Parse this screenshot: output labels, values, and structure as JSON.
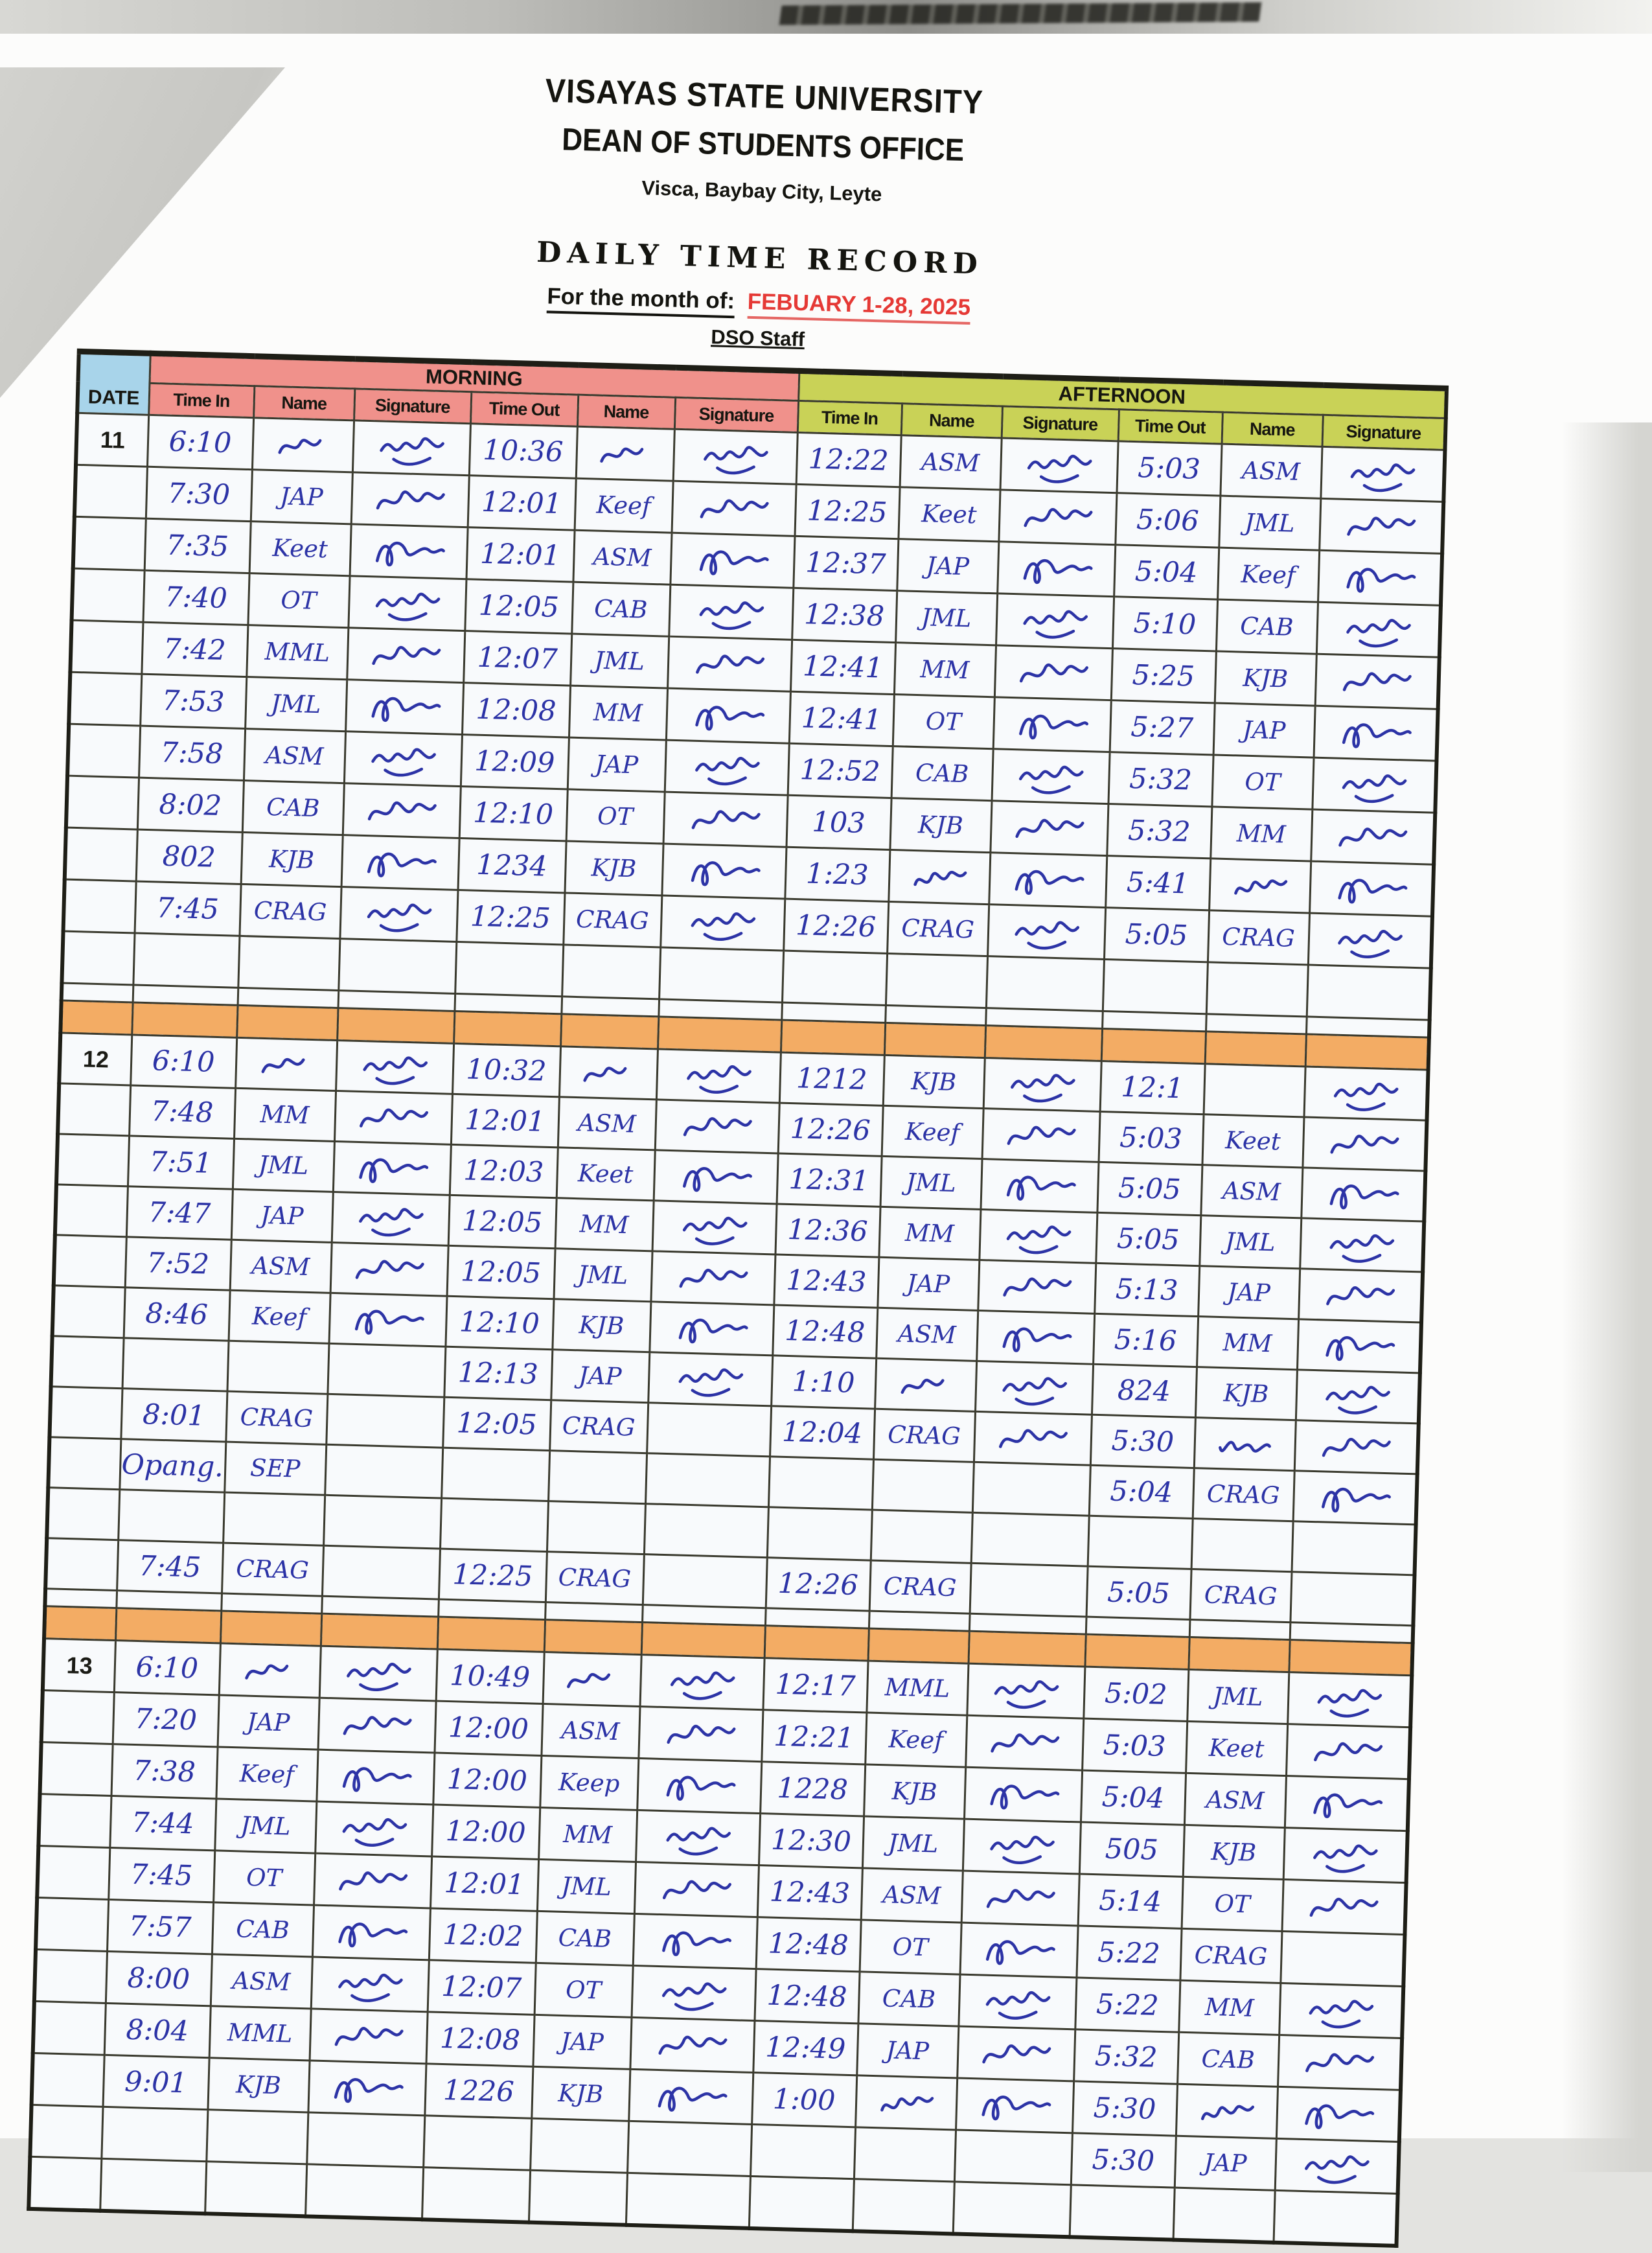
{
  "page": {
    "university": "VISAYAS STATE UNIVERSITY",
    "office": "DEAN OF STUDENTS OFFICE",
    "address": "Visca, Baybay City, Leyte",
    "title": "DAILY TIME RECORD",
    "month_label": "For the month of:",
    "month_value": "FEBUARY 1-28, 2025",
    "group": "DSO Staff"
  },
  "table": {
    "date_header": "DATE",
    "section_headers": [
      "MORNING",
      "AFTERNOON"
    ],
    "column_headers": [
      "Time In",
      "Name",
      "Signature",
      "Time Out",
      "Name",
      "Signature"
    ],
    "colors": {
      "date_header_bg": "#a8d4ea",
      "morning_bg": "#f0918b",
      "afternoon_bg": "#c9d257",
      "separator_bg": "#f3ac64",
      "ink": "#2c33a6",
      "month_accent": "#e53935"
    },
    "notation": {
      "@sig": "handwritten signature scribble",
      "@scr": "illegible handwritten initials scribble"
    },
    "blocks": [
      {
        "date": "11",
        "rows": [
          [
            "6:10",
            "@scr",
            "@sig",
            "10:36",
            "@scr",
            "@sig",
            "12:22",
            "ASM",
            "@sig",
            "5:03",
            "ASM",
            "@sig"
          ],
          [
            "7:30",
            "JAP",
            "@sig",
            "12:01",
            "Keef",
            "@sig",
            "12:25",
            "Keet",
            "@sig",
            "5:06",
            "JML",
            "@sig"
          ],
          [
            "7:35",
            "Keet",
            "@sig",
            "12:01",
            "ASM",
            "@sig",
            "12:37",
            "JAP",
            "@sig",
            "5:04",
            "Keef",
            "@sig"
          ],
          [
            "7:40",
            "OT",
            "@sig",
            "12:05",
            "CAB",
            "@sig",
            "12:38",
            "JML",
            "@sig",
            "5:10",
            "CAB",
            "@sig"
          ],
          [
            "7:42",
            "MML",
            "@sig",
            "12:07",
            "JML",
            "@sig",
            "12:41",
            "MM",
            "@sig",
            "5:25",
            "KJB",
            "@sig"
          ],
          [
            "7:53",
            "JML",
            "@sig",
            "12:08",
            "MM",
            "@sig",
            "12:41",
            "OT",
            "@sig",
            "5:27",
            "JAP",
            "@sig"
          ],
          [
            "7:58",
            "ASM",
            "@sig",
            "12:09",
            "JAP",
            "@sig",
            "12:52",
            "CAB",
            "@sig",
            "5:32",
            "OT",
            "@sig"
          ],
          [
            "8:02",
            "CAB",
            "@sig",
            "12:10",
            "OT",
            "@sig",
            "103",
            "KJB",
            "@sig",
            "5:32",
            "MM",
            "@sig"
          ],
          [
            "802",
            "KJB",
            "@sig",
            "1234",
            "KJB",
            "@sig",
            "1:23",
            "@scr",
            "@sig",
            "5:41",
            "@scr",
            "@sig"
          ],
          [
            "7:45",
            "CRAG",
            "@sig",
            "12:25",
            "CRAG",
            "@sig",
            "12:26",
            "CRAG",
            "@sig",
            "5:05",
            "CRAG",
            "@sig"
          ],
          [
            "",
            "",
            "",
            "",
            "",
            "",
            "",
            "",
            "",
            "",
            "",
            ""
          ]
        ]
      },
      {
        "date": "12",
        "rows": [
          [
            "6:10",
            "@scr",
            "@sig",
            "10:32",
            "@scr",
            "@sig",
            "1212",
            "KJB",
            "@sig",
            "12:1",
            "",
            "@sig"
          ],
          [
            "7:48",
            "MM",
            "@sig",
            "12:01",
            "ASM",
            "@sig",
            "12:26",
            "Keef",
            "@sig",
            "5:03",
            "Keet",
            "@sig"
          ],
          [
            "7:51",
            "JML",
            "@sig",
            "12:03",
            "Keet",
            "@sig",
            "12:31",
            "JML",
            "@sig",
            "5:05",
            "ASM",
            "@sig"
          ],
          [
            "7:47",
            "JAP",
            "@sig",
            "12:05",
            "MM",
            "@sig",
            "12:36",
            "MM",
            "@sig",
            "5:05",
            "JML",
            "@sig"
          ],
          [
            "7:52",
            "ASM",
            "@sig",
            "12:05",
            "JML",
            "@sig",
            "12:43",
            "JAP",
            "@sig",
            "5:13",
            "JAP",
            "@sig"
          ],
          [
            "8:46",
            "Keef",
            "@sig",
            "12:10",
            "KJB",
            "@sig",
            "12:48",
            "ASM",
            "@sig",
            "5:16",
            "MM",
            "@sig"
          ],
          [
            "",
            "",
            "",
            "12:13",
            "JAP",
            "@sig",
            "1:10",
            "@scr",
            "@sig",
            "824",
            "KJB",
            "@sig"
          ],
          [
            "8:01",
            "CRAG",
            "",
            "12:05",
            "CRAG",
            "",
            "12:04",
            "CRAG",
            "@sig",
            "5:30",
            "@scr",
            "@sig"
          ],
          [
            "Opang.",
            "SEP",
            "",
            "",
            "",
            "",
            "",
            "",
            "",
            "5:04",
            "CRAG",
            "@sig"
          ],
          [
            "",
            "",
            "",
            "",
            "",
            "",
            "",
            "",
            "",
            "",
            "",
            ""
          ],
          [
            "7:45",
            "CRAG",
            "",
            "12:25",
            "CRAG",
            "",
            "12:26",
            "CRAG",
            "",
            "5:05",
            "CRAG",
            ""
          ]
        ]
      },
      {
        "date": "13",
        "rows": [
          [
            "6:10",
            "@scr",
            "@sig",
            "10:49",
            "@scr",
            "@sig",
            "12:17",
            "MML",
            "@sig",
            "5:02",
            "JML",
            "@sig"
          ],
          [
            "7:20",
            "JAP",
            "@sig",
            "12:00",
            "ASM",
            "@sig",
            "12:21",
            "Keef",
            "@sig",
            "5:03",
            "Keet",
            "@sig"
          ],
          [
            "7:38",
            "Keef",
            "@sig",
            "12:00",
            "Keep",
            "@sig",
            "1228",
            "KJB",
            "@sig",
            "5:04",
            "ASM",
            "@sig"
          ],
          [
            "7:44",
            "JML",
            "@sig",
            "12:00",
            "MM",
            "@sig",
            "12:30",
            "JML",
            "@sig",
            "505",
            "KJB",
            "@sig"
          ],
          [
            "7:45",
            "OT",
            "@sig",
            "12:01",
            "JML",
            "@sig",
            "12:43",
            "ASM",
            "@sig",
            "5:14",
            "OT",
            "@sig"
          ],
          [
            "7:57",
            "CAB",
            "@sig",
            "12:02",
            "CAB",
            "@sig",
            "12:48",
            "OT",
            "@sig",
            "5:22",
            "CRAG",
            ""
          ],
          [
            "8:00",
            "ASM",
            "@sig",
            "12:07",
            "OT",
            "@sig",
            "12:48",
            "CAB",
            "@sig",
            "5:22",
            "MM",
            "@sig"
          ],
          [
            "8:04",
            "MML",
            "@sig",
            "12:08",
            "JAP",
            "@sig",
            "12:49",
            "JAP",
            "@sig",
            "5:32",
            "CAB",
            "@sig"
          ],
          [
            "9:01",
            "KJB",
            "@sig",
            "1226",
            "KJB",
            "@sig",
            "1:00",
            "@scr",
            "@sig",
            "5:30",
            "@scr",
            "@sig"
          ],
          [
            "",
            "",
            "",
            "",
            "",
            "",
            "",
            "",
            "",
            "5:30",
            "JAP",
            "@sig"
          ],
          [
            "",
            "",
            "",
            "",
            "",
            "",
            "",
            "",
            "",
            "",
            "",
            ""
          ]
        ]
      }
    ]
  }
}
